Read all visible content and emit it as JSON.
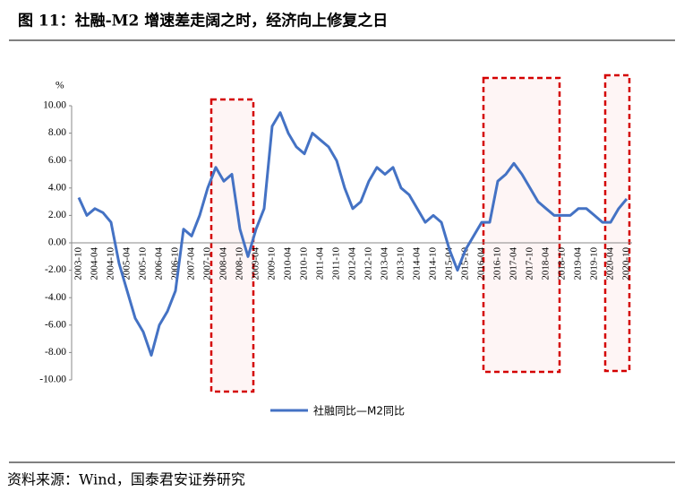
{
  "chart_data": {
    "type": "line",
    "title": "图 11：社融-M2 增速差走阔之时，经济向上修复之日",
    "y_axis_label": "%",
    "source": "资料来源：Wind，国泰君安证券研究",
    "categories": [
      "2003-10",
      null,
      "2004-04",
      null,
      "2004-10",
      null,
      "2005-04",
      null,
      "2005-10",
      null,
      "2006-04",
      null,
      "2006-10",
      null,
      "2007-04",
      null,
      "2007-10",
      null,
      "2008-04",
      null,
      "2008-10",
      null,
      "2009-04",
      null,
      "2009-10",
      null,
      "2010-04",
      null,
      "2010-10",
      null,
      "2011-04",
      null,
      "2011-10",
      null,
      "2012-04",
      null,
      "2012-10",
      null,
      "2013-04",
      null,
      "2013-10",
      null,
      "2014-04",
      null,
      "2014-10",
      null,
      "2015-04",
      null,
      "2015-10",
      null,
      "2016-04",
      null,
      "2016-10",
      null,
      "2017-04",
      null,
      "2017-10",
      null,
      "2018-04",
      null,
      "2018-10",
      null,
      "2019-04",
      null,
      "2019-10",
      null,
      "2020-04",
      null,
      "2020-10"
    ],
    "series": [
      {
        "name": "社融同比—M2同比",
        "color": "#4472c4",
        "values": [
          3.3,
          2.0,
          2.5,
          2.2,
          1.5,
          -1.5,
          -3.5,
          -5.5,
          -6.5,
          -8.2,
          -6.0,
          -5.0,
          -3.5,
          1.0,
          0.5,
          2.0,
          4.0,
          5.5,
          4.5,
          5.0,
          1.0,
          -1.0,
          1.0,
          2.5,
          8.5,
          9.5,
          8.0,
          7.0,
          6.5,
          8.0,
          7.5,
          7.0,
          6.0,
          4.0,
          2.5,
          3.0,
          4.5,
          5.5,
          5.0,
          5.5,
          4.0,
          3.5,
          2.5,
          1.5,
          2.0,
          1.5,
          -0.5,
          -2.0,
          -0.5,
          0.5,
          1.5,
          1.5,
          4.5,
          5.0,
          5.8,
          5.0,
          4.0,
          3.0,
          2.5,
          2.0,
          2.0,
          2.0,
          2.5,
          2.5,
          2.0,
          1.5,
          1.5,
          2.5,
          3.2
        ]
      }
    ],
    "ylim": [
      -10,
      10
    ],
    "yticks": [
      {
        "value": 10,
        "label": "10.00"
      },
      {
        "value": 8,
        "label": "8.00"
      },
      {
        "value": 6,
        "label": "6.00"
      },
      {
        "value": 4,
        "label": "4.00"
      },
      {
        "value": 2,
        "label": "2.00"
      },
      {
        "value": 0,
        "label": "0.00"
      },
      {
        "value": -2,
        "label": "-2.00"
      },
      {
        "value": -4,
        "label": "-4.00"
      },
      {
        "value": -6,
        "label": "-6.00"
      },
      {
        "value": -8,
        "label": "-8.00"
      },
      {
        "value": -10,
        "label": "-10.00"
      }
    ]
  }
}
